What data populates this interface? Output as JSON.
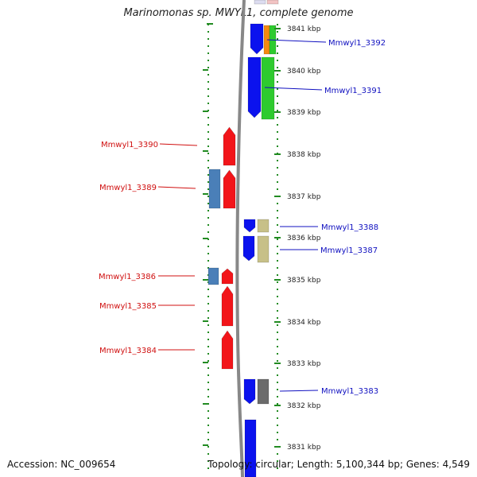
{
  "title": "Marinomonas sp. MWYL1, complete genome",
  "accession_text": "Accession: NC_009654",
  "summary_text": "Topology: circular; Length: 5,100,344 bp; Genes: 4,549",
  "colors": {
    "blue": "#0b12ee",
    "red": "#f2151a",
    "green": "#2ecb2e",
    "orange": "#f58a10",
    "khaki": "#c7c088",
    "steel": "#4a7fb8",
    "gray": "#6b6b6b",
    "dotted": "#228b22",
    "backbone": "#888888",
    "label_plus": "#1010c0",
    "label_minus": "#d01010"
  },
  "ticks": [
    {
      "label": "3841 kbp"
    },
    {
      "label": "3840 kbp"
    },
    {
      "label": "3839 kbp"
    },
    {
      "label": "3838 kbp"
    },
    {
      "label": "3837 kbp"
    },
    {
      "label": "3836 kbp"
    },
    {
      "label": "3835 kbp"
    },
    {
      "label": "3834 kbp"
    },
    {
      "label": "3833 kbp"
    },
    {
      "label": "3832 kbp"
    },
    {
      "label": "3831 kbp"
    }
  ],
  "gene_labels": [
    {
      "name": "Mmwyl1_3392",
      "strand": "plus"
    },
    {
      "name": "Mmwyl1_3391",
      "strand": "plus"
    },
    {
      "name": "Mmwyl1_3390",
      "strand": "minus"
    },
    {
      "name": "Mmwyl1_3389",
      "strand": "minus"
    },
    {
      "name": "Mmwyl1_3388",
      "strand": "plus"
    },
    {
      "name": "Mmwyl1_3387",
      "strand": "plus"
    },
    {
      "name": "Mmwyl1_3386",
      "strand": "minus"
    },
    {
      "name": "Mmwyl1_3385",
      "strand": "minus"
    },
    {
      "name": "Mmwyl1_3384",
      "strand": "minus"
    },
    {
      "name": "Mmwyl1_3383",
      "strand": "plus"
    }
  ]
}
